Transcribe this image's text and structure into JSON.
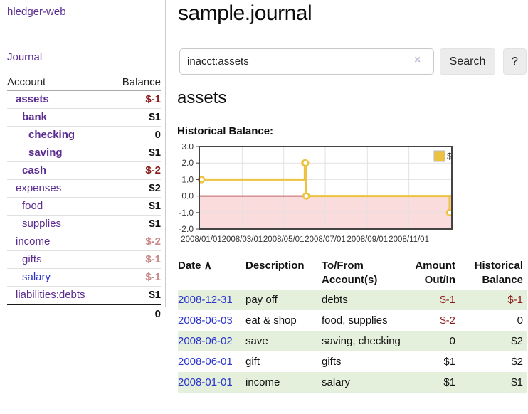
{
  "sidebar": {
    "brand": "hledger-web",
    "journal_link": "Journal",
    "accounts_table": {
      "account_header": "Account",
      "balance_header": "Balance",
      "rows": [
        {
          "name": "assets",
          "indent": 1,
          "bold": true,
          "balance": "$-1",
          "balance_style": "negative"
        },
        {
          "name": "bank",
          "indent": 2,
          "bold": true,
          "balance": "$1",
          "balance_style": "normal"
        },
        {
          "name": "checking",
          "indent": 3,
          "bold": true,
          "balance": "0",
          "balance_style": "normal"
        },
        {
          "name": "saving",
          "indent": 3,
          "bold": true,
          "balance": "$1",
          "balance_style": "normal"
        },
        {
          "name": "cash",
          "indent": 2,
          "bold": true,
          "balance": "$-2",
          "balance_style": "negative"
        },
        {
          "name": "expenses",
          "indent": 1,
          "bold": false,
          "balance": "$2",
          "balance_style": "normal"
        },
        {
          "name": "food",
          "indent": 2,
          "bold": false,
          "balance": "$1",
          "balance_style": "normal"
        },
        {
          "name": "supplies",
          "indent": 2,
          "bold": false,
          "balance": "$1",
          "balance_style": "normal"
        },
        {
          "name": "income",
          "indent": 1,
          "bold": false,
          "balance": "$-2",
          "balance_style": "muted-negative"
        },
        {
          "name": "gifts",
          "indent": 2,
          "bold": false,
          "balance": "$-1",
          "balance_style": "muted-negative"
        },
        {
          "name": "salary",
          "indent": 2,
          "bold": false,
          "link_style": "blue",
          "balance": "$-1",
          "balance_style": "muted-negative"
        },
        {
          "name": "liabilities:debts",
          "indent": 1,
          "bold": false,
          "balance": "$1",
          "balance_style": "normal"
        }
      ],
      "total": "0"
    }
  },
  "header": {
    "title": "sample.journal"
  },
  "search": {
    "value": "inacct:assets",
    "clear_label": "×",
    "search_button": "Search",
    "help_button": "?"
  },
  "account_page": {
    "heading": "assets",
    "chart_title": "Historical Balance:"
  },
  "chart_data": {
    "type": "line",
    "title": "Historical Balance",
    "step": true,
    "series": [
      {
        "name": "$",
        "color": "#edc240",
        "points": [
          {
            "date": "2008-01-01",
            "value": 1
          },
          {
            "date": "2008-06-01",
            "value": 2
          },
          {
            "date": "2008-06-02",
            "value": 2
          },
          {
            "date": "2008-06-03",
            "value": 0
          },
          {
            "date": "2008-12-31",
            "value": -1
          }
        ]
      }
    ],
    "xlim": [
      "2008-01-01",
      "2008-12-31"
    ],
    "ylim": [
      -2,
      3
    ],
    "x_ticks": [
      "2008/01/01",
      "2008/03/01",
      "2008/05/01",
      "2008/07/01",
      "2008/09/01",
      "2008/11/01"
    ],
    "y_ticks": [
      3.0,
      2.0,
      1.0,
      0.0,
      -1.0,
      -2.0
    ],
    "grid": true,
    "legend_position": "top-right",
    "legend_label": "$",
    "negative_region_color": "#fbdcdc",
    "zero_line_color": "#9e1b1b",
    "plot_border_color": "#444444",
    "grid_color": "#e2e2e2"
  },
  "register_table": {
    "headers": {
      "date": "Date",
      "date_sort_icon": "∧",
      "description": "Description",
      "tofrom_line1": "To/From",
      "tofrom_line2": "Account(s)",
      "amount_line1": "Amount",
      "amount_line2": "Out/In",
      "balance_line1": "Historical",
      "balance_line2": "Balance"
    },
    "rows": [
      {
        "date": "2008-12-31",
        "description": "pay off",
        "accounts": "debts",
        "amount": "$-1",
        "amount_negative": true,
        "balance": "$-1",
        "balance_negative": true
      },
      {
        "date": "2008-06-03",
        "description": "eat & shop",
        "accounts": "food, supplies",
        "amount": "$-2",
        "amount_negative": true,
        "balance": "0",
        "balance_negative": false
      },
      {
        "date": "2008-06-02",
        "description": "save",
        "accounts": "saving, checking",
        "amount": "0",
        "amount_negative": false,
        "balance": "$2",
        "balance_negative": false
      },
      {
        "date": "2008-06-01",
        "description": "gift",
        "accounts": "gifts",
        "amount": "$1",
        "amount_negative": false,
        "balance": "$2",
        "balance_negative": false
      },
      {
        "date": "2008-01-01",
        "description": "income",
        "accounts": "salary",
        "amount": "$1",
        "amount_negative": false,
        "balance": "$1",
        "balance_negative": false
      }
    ]
  },
  "colors": {
    "link_purple": "#5b2d90",
    "link_blue": "#2a35cc",
    "negative_red": "#8b1a1a",
    "muted_negative_red": "#c98989",
    "row_green": "#e4efdc",
    "chart_line_gold": "#edc240"
  }
}
